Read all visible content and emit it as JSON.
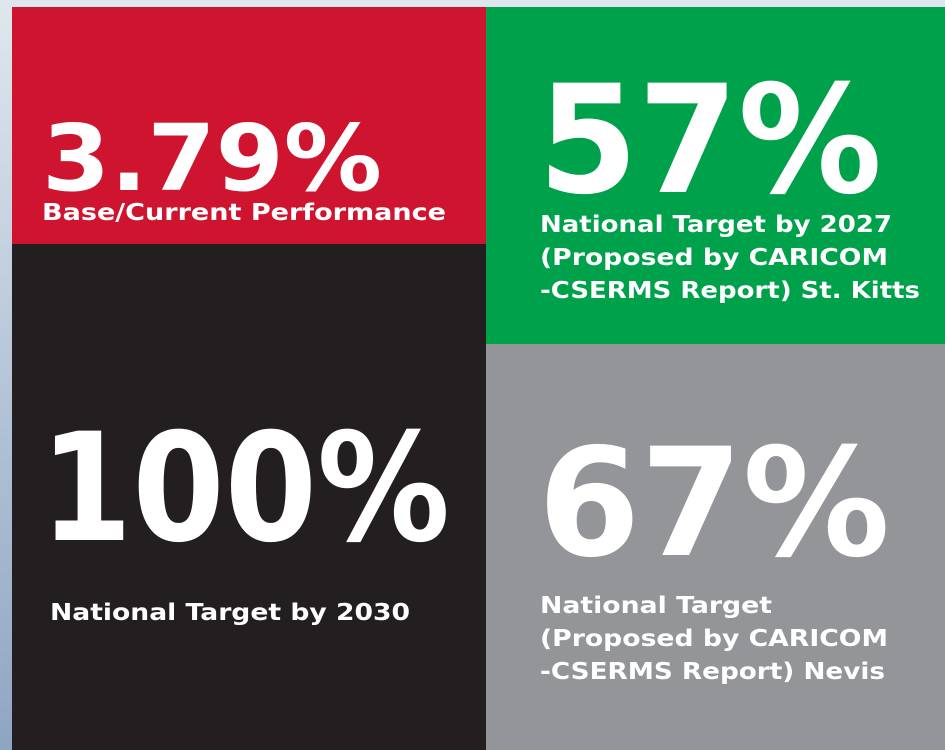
{
  "tiles": [
    {
      "value": "3.79%",
      "label": [
        "Base/Current Performance"
      ]
    },
    {
      "value": "57%",
      "label": [
        "National Target by 2027",
        "(Proposed by CARICOM",
        "-CSERMS Report) St. Kitts"
      ]
    },
    {
      "value": "100%",
      "label": [
        "National Target by 2030"
      ]
    },
    {
      "value": "67%",
      "label": [
        "National Target",
        "(Proposed by CARICOM",
        "-CSERMS Report) Nevis"
      ]
    }
  ]
}
